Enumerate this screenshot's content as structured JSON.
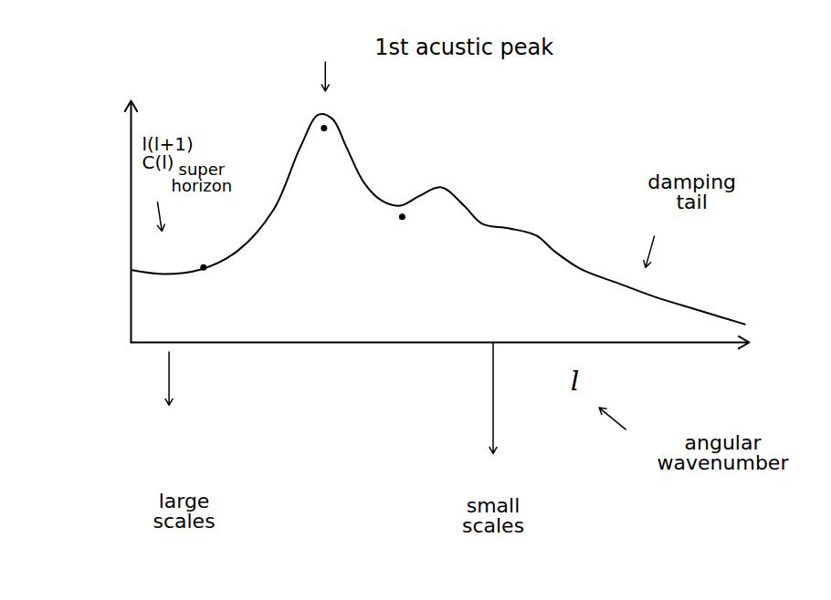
{
  "chart_data": {
    "type": "line",
    "x_label": "l",
    "y_label": "l(l+1) C(l)",
    "x": [
      0,
      7.6,
      15.8,
      24,
      32.2,
      38.4,
      42.5,
      45.6,
      48.7,
      52.8,
      56.9,
      61,
      65.1,
      70.2,
      75.4,
      79.5,
      85.6,
      91.8,
      95.9,
      102,
      110.3,
      118.5,
      128.7,
      139
    ],
    "values": [
      30,
      28.3,
      30.2,
      37.7,
      54.7,
      81.1,
      94.3,
      92.5,
      81.1,
      66,
      58.5,
      56.6,
      60.4,
      64.2,
      56.6,
      49.1,
      47.2,
      44.2,
      37.7,
      30.2,
      24.5,
      18.9,
      13.2,
      7.5
    ],
    "color": "#000000",
    "points": {
      "x": [
        16.4,
        43.7,
        61.4
      ],
      "y": [
        31,
        88.7,
        52
      ],
      "marker": "dot"
    },
    "xlim": [
      0,
      140
    ],
    "ylim": [
      0,
      100
    ],
    "xticks": [],
    "yticks": [],
    "tick_labels": false,
    "grid": false,
    "annotations": [
      "1st acustic peak",
      "super horizon",
      "damping tail",
      "angular wavenumber",
      "large scales",
      "small scales"
    ]
  }
}
